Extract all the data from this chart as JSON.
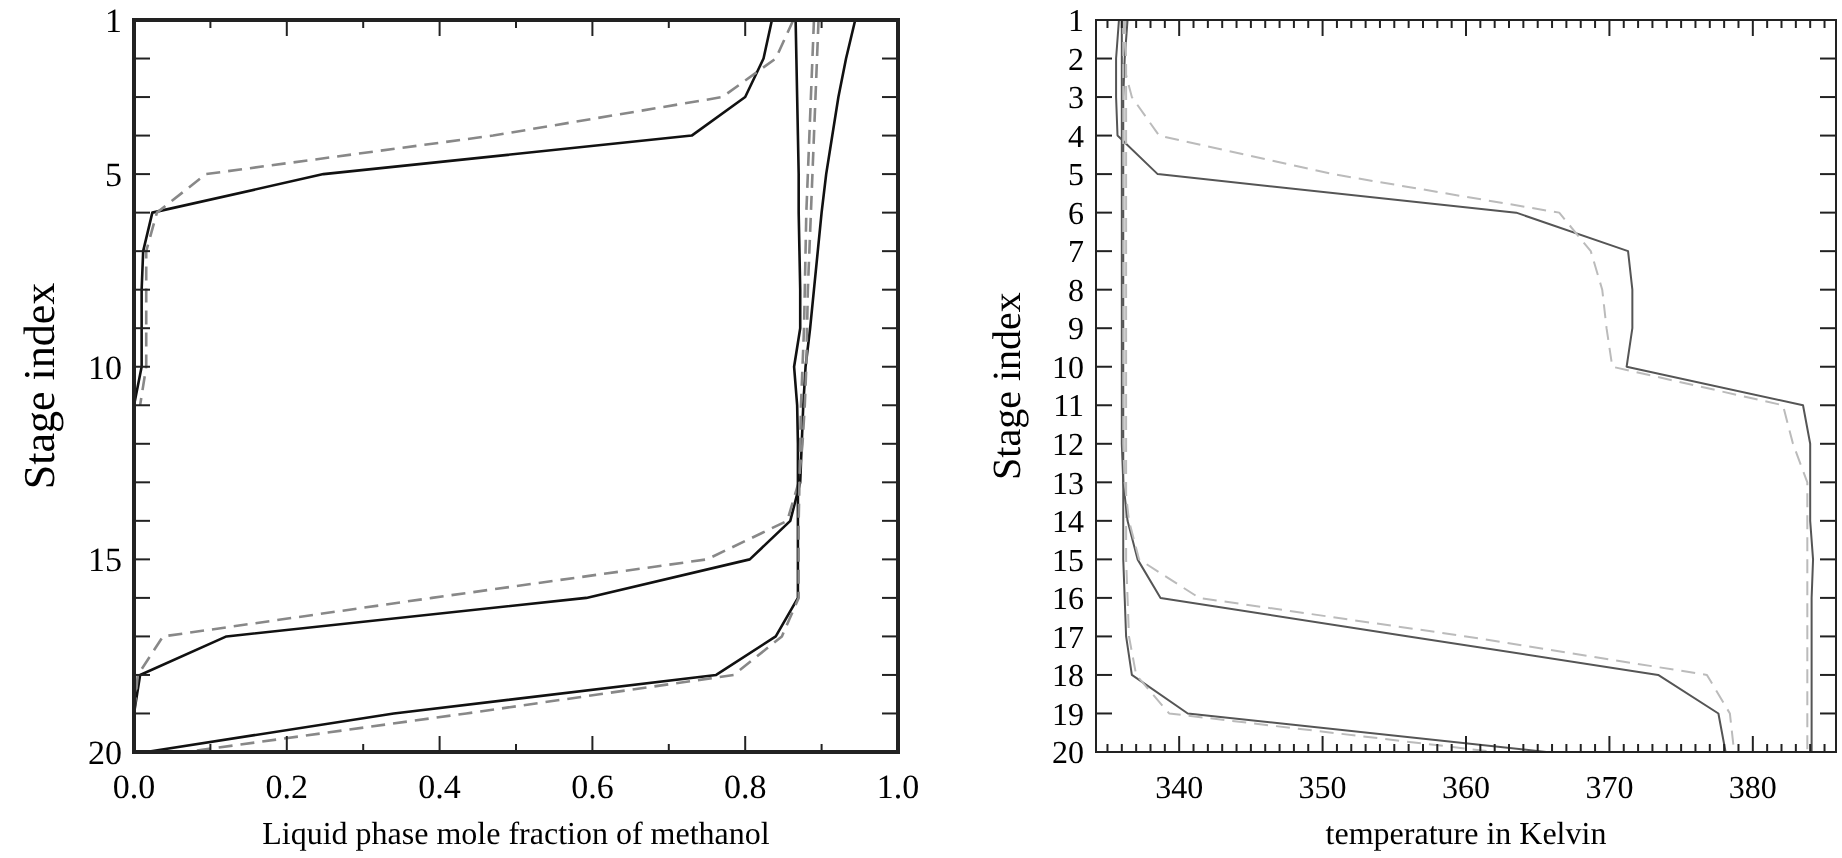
{
  "chart_data": [
    {
      "type": "line",
      "xlabel": "Liquid phase mole fraction of methanol",
      "ylabel": "Stage index",
      "xlim": [
        0,
        1
      ],
      "ylim": [
        20,
        1
      ],
      "xticks": [
        {
          "value": 0,
          "label": "0.0"
        },
        {
          "value": 0.1,
          "label": null
        },
        0.2,
        {
          "value": 0.3,
          "label": null
        },
        0.4,
        {
          "value": 0.5,
          "label": null
        },
        0.6,
        {
          "value": 0.7,
          "label": null
        },
        0.8,
        {
          "value": 0.9,
          "label": null
        },
        {
          "value": 1,
          "label": "1.0"
        }
      ],
      "yticks": [
        1,
        {
          "value": 2,
          "label": null
        },
        {
          "value": 3,
          "label": null
        },
        {
          "value": 4,
          "label": null
        },
        5,
        {
          "value": 6,
          "label": null
        },
        {
          "value": 7,
          "label": null
        },
        {
          "value": 8,
          "label": null
        },
        {
          "value": 9,
          "label": null
        },
        10,
        {
          "value": 11,
          "label": null
        },
        {
          "value": 12,
          "label": null
        },
        {
          "value": 13,
          "label": null
        },
        {
          "value": 14,
          "label": null
        },
        15,
        {
          "value": 16,
          "label": null
        },
        {
          "value": 17,
          "label": null
        },
        {
          "value": 18,
          "label": null
        },
        {
          "value": 19,
          "label": null
        },
        20
      ],
      "grid": false,
      "series": [
        {
          "color": "#111111",
          "line_style": "solid",
          "x": [
            0.835,
            0.824,
            0.8,
            0.73,
            0.248,
            0.024,
            0.012,
            0.01,
            0.01,
            0.01,
            0
          ],
          "values": [
            1,
            2,
            3,
            4,
            5,
            6,
            7,
            8,
            9,
            10,
            11
          ]
        },
        {
          "color": "#888888",
          "line_style": "dashed",
          "x": [
            0.863,
            0.84,
            0.77,
            0.47,
            0.094,
            0.03,
            0.016,
            0.016,
            0.016,
            0.016,
            0.008
          ],
          "values": [
            1,
            2,
            3,
            4,
            5,
            6,
            7,
            8,
            9,
            10,
            11
          ]
        },
        {
          "color": "#111111",
          "line_style": "solid",
          "x": [
            0.944,
            0.932,
            0.922,
            0.914,
            0.906,
            0.9,
            0.895,
            0.89,
            0.885,
            0.879,
            0.876,
            0.874,
            0.872,
            0.859,
            0.806,
            0.592,
            0.121,
            0.008,
            0
          ],
          "values": [
            1,
            2,
            3,
            4,
            5,
            6,
            7,
            8,
            9,
            10,
            11,
            12,
            13,
            14,
            15,
            16,
            17,
            18,
            19
          ]
        },
        {
          "color": "#888888",
          "line_style": "dashed",
          "x": [
            0.896,
            0.894,
            0.892,
            0.89,
            0.888,
            0.886,
            0.884,
            0.882,
            0.881,
            0.88,
            0.878,
            0.875,
            0.87,
            0.855,
            0.75,
            0.39,
            0.038,
            0.005,
            0
          ],
          "values": [
            1,
            2,
            3,
            4,
            5,
            6,
            7,
            8,
            9,
            10,
            11,
            12,
            13,
            14,
            15,
            16,
            17,
            18,
            19
          ]
        },
        {
          "color": "#111111",
          "line_style": "solid",
          "x": [
            0.866,
            0.867,
            0.868,
            0.869,
            0.87,
            0.87,
            0.871,
            0.872,
            0.872,
            0.864,
            0.868,
            0.869,
            0.869,
            0.869,
            0.869,
            0.869,
            0.84,
            0.762,
            0.34,
            0.016
          ],
          "values": [
            1,
            2,
            3,
            4,
            5,
            6,
            7,
            8,
            9,
            10,
            11,
            12,
            13,
            14,
            15,
            16,
            17,
            18,
            19,
            20
          ]
        },
        {
          "color": "#888888",
          "line_style": "dashed",
          "x": [
            0.89,
            0.888,
            0.886,
            0.884,
            0.882,
            0.88,
            0.879,
            0.878,
            0.877,
            0.875,
            0.873,
            0.872,
            0.871,
            0.87,
            0.87,
            0.87,
            0.848,
            0.785,
            0.435,
            0.068
          ],
          "values": [
            1,
            2,
            3,
            4,
            5,
            6,
            7,
            8,
            9,
            10,
            11,
            12,
            13,
            14,
            15,
            16,
            17,
            18,
            19,
            20
          ]
        }
      ]
    },
    {
      "type": "line",
      "xlabel": "temperature in Kelvin",
      "ylabel": "Stage index",
      "xlim": [
        334.2,
        385.8
      ],
      "ylim": [
        20,
        1
      ],
      "xticks": [
        {
          "value": 335,
          "label": null
        },
        {
          "value": 336,
          "label": null
        },
        {
          "value": 337,
          "label": null
        },
        {
          "value": 338,
          "label": null
        },
        {
          "value": 339,
          "label": null
        },
        340,
        {
          "value": 341,
          "label": null
        },
        {
          "value": 342,
          "label": null
        },
        {
          "value": 343,
          "label": null
        },
        {
          "value": 344,
          "label": null
        },
        {
          "value": 345,
          "label": null
        },
        {
          "value": 346,
          "label": null
        },
        {
          "value": 347,
          "label": null
        },
        {
          "value": 348,
          "label": null
        },
        {
          "value": 349,
          "label": null
        },
        350,
        {
          "value": 351,
          "label": null
        },
        {
          "value": 352,
          "label": null
        },
        {
          "value": 353,
          "label": null
        },
        {
          "value": 354,
          "label": null
        },
        {
          "value": 355,
          "label": null
        },
        {
          "value": 356,
          "label": null
        },
        {
          "value": 357,
          "label": null
        },
        {
          "value": 358,
          "label": null
        },
        {
          "value": 359,
          "label": null
        },
        360,
        {
          "value": 361,
          "label": null
        },
        {
          "value": 362,
          "label": null
        },
        {
          "value": 363,
          "label": null
        },
        {
          "value": 364,
          "label": null
        },
        {
          "value": 365,
          "label": null
        },
        {
          "value": 366,
          "label": null
        },
        {
          "value": 367,
          "label": null
        },
        {
          "value": 368,
          "label": null
        },
        {
          "value": 369,
          "label": null
        },
        370,
        {
          "value": 371,
          "label": null
        },
        {
          "value": 372,
          "label": null
        },
        {
          "value": 373,
          "label": null
        },
        {
          "value": 374,
          "label": null
        },
        {
          "value": 375,
          "label": null
        },
        {
          "value": 376,
          "label": null
        },
        {
          "value": 377,
          "label": null
        },
        {
          "value": 378,
          "label": null
        },
        {
          "value": 379,
          "label": null
        },
        380,
        {
          "value": 381,
          "label": null
        },
        {
          "value": 382,
          "label": null
        },
        {
          "value": 383,
          "label": null
        },
        {
          "value": 384,
          "label": null
        },
        {
          "value": 385,
          "label": null
        }
      ],
      "yticks": [
        1,
        2,
        3,
        4,
        5,
        6,
        7,
        8,
        9,
        10,
        11,
        12,
        13,
        14,
        15,
        16,
        17,
        18,
        19,
        20
      ],
      "grid": false,
      "series": [
        {
          "color": "#555555",
          "line_style": "solid",
          "x": [
            335.8,
            335.6,
            335.6,
            335.7,
            338.5,
            363.5,
            371.3,
            371.6,
            371.6,
            371.2,
            383.5,
            384,
            384,
            384,
            384.2,
            384.1,
            384.1,
            384.1,
            384.1,
            384.1
          ],
          "values": [
            1,
            2,
            3,
            4,
            5,
            6,
            7,
            8,
            9,
            10,
            11,
            12,
            13,
            14,
            15,
            16,
            17,
            18,
            19,
            20
          ]
        },
        {
          "color": "#bbbbbb",
          "line_style": "dashed",
          "x": [
            336.3,
            336,
            336.7,
            338.6,
            350.7,
            366.5,
            368.7,
            369.5,
            369.8,
            370.2,
            382.1,
            382.8,
            383.8,
            383.8,
            383.8,
            383.8,
            383.8,
            383.8,
            383.8,
            383.8
          ],
          "values": [
            1,
            2,
            3,
            4,
            5,
            6,
            7,
            8,
            9,
            10,
            11,
            12,
            13,
            14,
            15,
            16,
            17,
            18,
            19,
            20
          ]
        },
        {
          "color": "#555555",
          "line_style": "solid",
          "x": [
            336.4,
            336.2,
            336.1,
            336.1,
            336.1,
            336.1,
            336.1,
            336.1,
            336.1,
            336.1,
            336.1,
            336.1,
            336.1,
            336.1,
            336.1,
            336.2,
            336.3,
            336.7,
            340.6,
            365.6
          ],
          "values": [
            1,
            2,
            3,
            4,
            5,
            6,
            7,
            8,
            9,
            10,
            11,
            12,
            13,
            14,
            15,
            16,
            17,
            18,
            19,
            20
          ]
        },
        {
          "color": "#bbbbbb",
          "line_style": "dashed",
          "x": [
            336.2,
            336.3,
            336.3,
            336.3,
            336.3,
            336.3,
            336.3,
            336.3,
            336.3,
            336.3,
            336.3,
            336.3,
            336.3,
            336.3,
            336.3,
            336.4,
            336.5,
            337,
            339.3,
            362
          ],
          "values": [
            1,
            2,
            3,
            4,
            5,
            6,
            7,
            8,
            9,
            10,
            11,
            12,
            13,
            14,
            15,
            16,
            17,
            18,
            19,
            20
          ]
        },
        {
          "color": "#555555",
          "line_style": "solid",
          "x": [
            336,
            336,
            336,
            336,
            336,
            336,
            336,
            336,
            336,
            336,
            336,
            336,
            336.1,
            336.4,
            337.1,
            338.7,
            356,
            373.4,
            377.6,
            378.1
          ],
          "values": [
            1,
            2,
            3,
            4,
            5,
            6,
            7,
            8,
            9,
            10,
            11,
            12,
            13,
            14,
            15,
            16,
            17,
            18,
            19,
            20
          ]
        },
        {
          "color": "#bbbbbb",
          "line_style": "dashed",
          "x": [
            336.1,
            336.1,
            336.1,
            336.1,
            336.1,
            336.1,
            336.1,
            336.1,
            336.1,
            336.1,
            336.1,
            336.1,
            336.2,
            336.5,
            337.2,
            341.4,
            360,
            376.8,
            378.4,
            378.7
          ],
          "values": [
            1,
            2,
            3,
            4,
            5,
            6,
            7,
            8,
            9,
            10,
            11,
            12,
            13,
            14,
            15,
            16,
            17,
            18,
            19,
            20
          ]
        }
      ]
    }
  ]
}
